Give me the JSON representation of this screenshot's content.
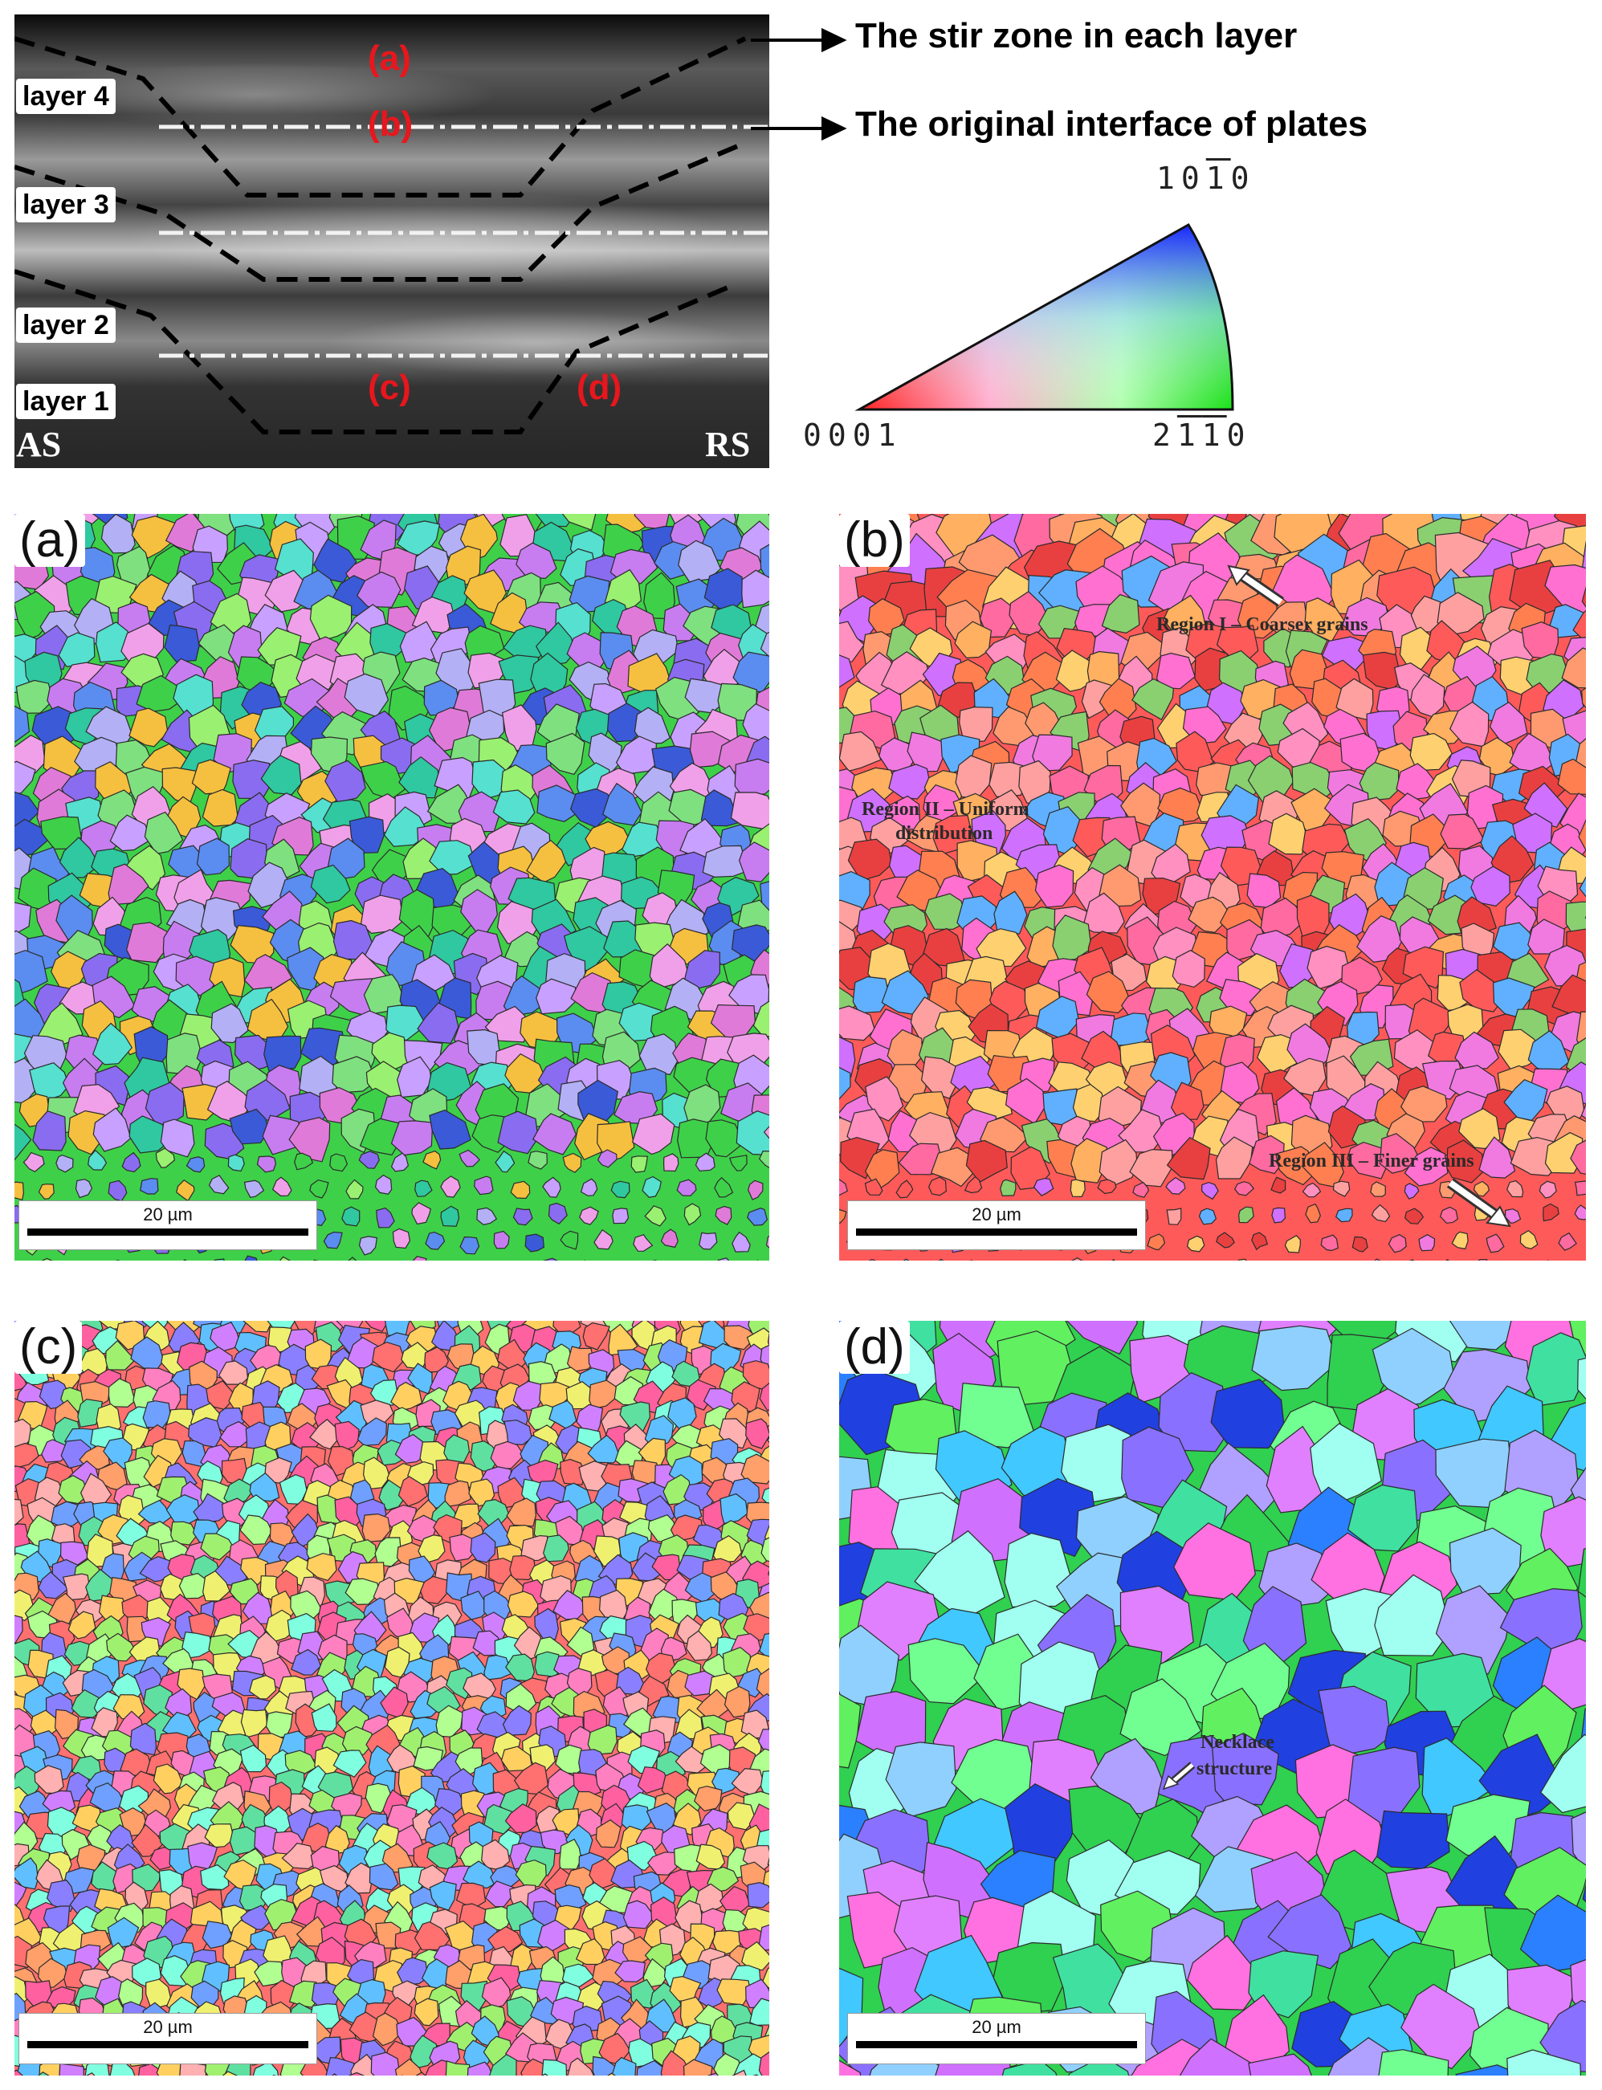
{
  "macro": {
    "layers": [
      "layer 4",
      "layer 3",
      "layer 2",
      "layer 1"
    ],
    "position_tags": [
      "(a)",
      "(b)",
      "(c)",
      "(d)"
    ],
    "side_left": "AS",
    "side_right": "RS",
    "annotation_stir_zone": "The stir zone in each layer",
    "annotation_interface": "The original interface of plates"
  },
  "ipf_legend": {
    "top_label": "10̅1̅0",
    "corner_left": "0001",
    "corner_right": "2̅1̅1̅0",
    "top_text": "10",
    "top_bar": "1",
    "top_end": "0",
    "left_text": "0001",
    "right_a": "2",
    "right_b": "1",
    "right_c": "1",
    "right_d": "0"
  },
  "panels": [
    {
      "tag": "(a)",
      "scale": "20 µm",
      "palette": "green-blue-purple",
      "grain_size": "medium"
    },
    {
      "tag": "(b)",
      "scale": "20 µm",
      "palette": "red-orange-pink",
      "grain_size": "medium",
      "notes": [
        "Region I – Coarser grains",
        "Region II – Uniform",
        "distribution",
        "Region III – Finer grains"
      ]
    },
    {
      "tag": "(c)",
      "scale": "20 µm",
      "palette": "multicolor",
      "grain_size": "fine"
    },
    {
      "tag": "(d)",
      "scale": "20 µm",
      "palette": "green-cyan-magenta",
      "grain_size": "coarse",
      "notes": [
        "Necklace",
        "structure"
      ]
    }
  ],
  "colors": {
    "red_tag": "#e8161d",
    "boundary": "#2b2b2b",
    "dash": "#000000"
  }
}
